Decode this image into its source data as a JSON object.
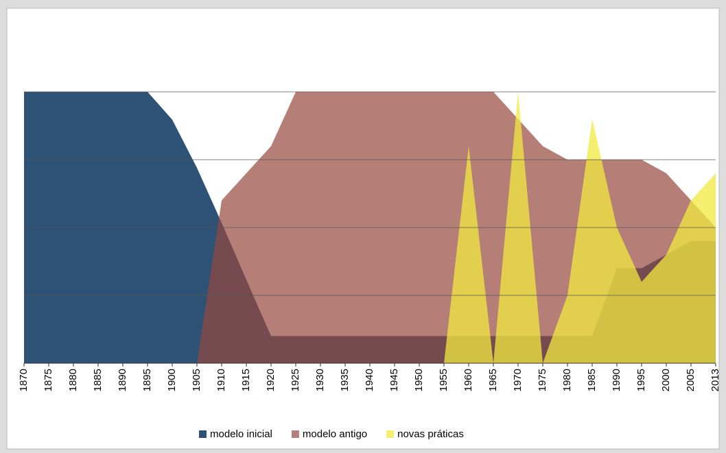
{
  "chart_data": {
    "type": "area",
    "categories": [
      "1870",
      "1875",
      "1880",
      "1885",
      "1890",
      "1895",
      "1900",
      "1905",
      "1910",
      "1915",
      "1920",
      "1925",
      "1930",
      "1935",
      "1940",
      "1945",
      "1950",
      "1955",
      "1960",
      "1965",
      "1970",
      "1975",
      "1980",
      "1985",
      "1990",
      "1995",
      "2000",
      "2005",
      "2013"
    ],
    "series": [
      {
        "name": "modelo inicial",
        "color": "#2e5276",
        "values": [
          4,
          4,
          4,
          4,
          4,
          4,
          3.59,
          2.88,
          2.07,
          1.23,
          0.4,
          0.4,
          0.4,
          0.4,
          0.4,
          0.4,
          0.4,
          0.4,
          0.4,
          0.4,
          0.4,
          0.4,
          0.4,
          0.4,
          1.4,
          1.4,
          1.6,
          1.8,
          1.8
        ]
      },
      {
        "name": "modelo antigo",
        "color": "#95483f",
        "values": [
          0,
          0,
          0,
          0,
          0,
          0,
          0,
          0,
          2.4,
          2.8,
          3.2,
          4,
          4,
          4,
          4,
          4,
          4,
          4,
          4,
          4,
          3.6,
          3.2,
          3,
          3,
          3,
          3,
          2.8,
          2.4,
          2
        ]
      },
      {
        "name": "novas práticas",
        "color": "#f1e940",
        "values": [
          0,
          0,
          0,
          0,
          0,
          0,
          0,
          0,
          0,
          0,
          0,
          0,
          0,
          0,
          0,
          0,
          0,
          0,
          3.2,
          0,
          4,
          0,
          1,
          3.6,
          2,
          1.2,
          1.6,
          2.4,
          2.8
        ]
      }
    ],
    "ylim": [
      0,
      5
    ],
    "yticks": [
      1,
      2,
      3,
      4
    ],
    "grid": true
  }
}
